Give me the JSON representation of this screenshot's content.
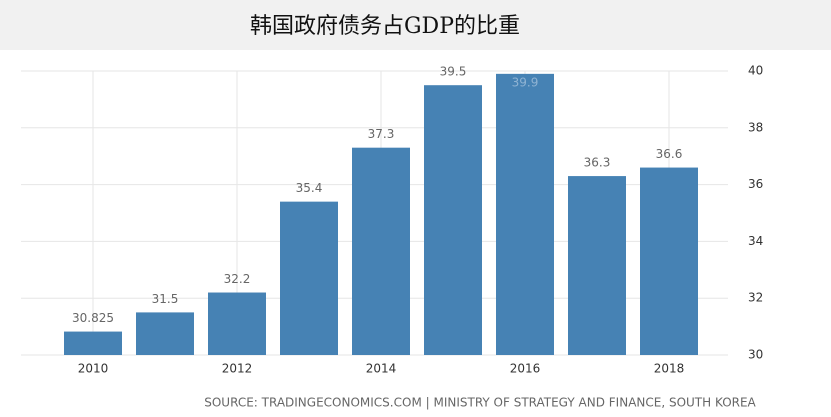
{
  "chart_data": {
    "type": "bar",
    "title": "韩国政府债务占GDP的比重",
    "categories": [
      "2010",
      null,
      "2012",
      null,
      "2014",
      null,
      "2016",
      null,
      "2018"
    ],
    "values": [
      30.825,
      31.5,
      32.2,
      35.4,
      37.3,
      39.5,
      39.9,
      36.3,
      36.6
    ],
    "color": "#4682b4",
    "ylim": [
      30,
      40
    ],
    "yticks": [
      30,
      32,
      34,
      36,
      38,
      40
    ],
    "grid": true,
    "source": "SOURCE: TRADINGECONOMICS.COM | MINISTRY OF STRATEGY AND FINANCE, SOUTH KOREA"
  }
}
